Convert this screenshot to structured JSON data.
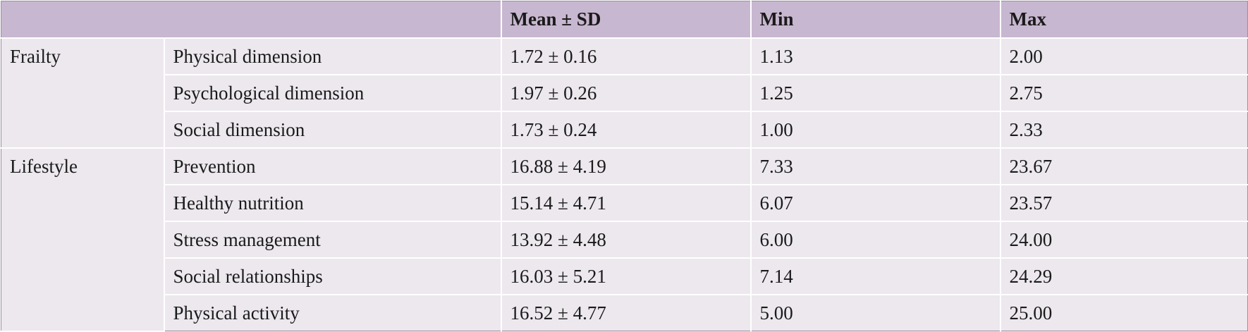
{
  "table": {
    "headers": [
      "",
      "",
      "Mean ± SD",
      "Min",
      "Max"
    ],
    "groups": [
      {
        "label": "Frailty",
        "rows": [
          {
            "name": "Physical dimension",
            "mean_sd": "1.72 ± 0.16",
            "min": "1.13",
            "max": "2.00"
          },
          {
            "name": "Psychological dimension",
            "mean_sd": "1.97 ± 0.26",
            "min": "1.25",
            "max": "2.75"
          },
          {
            "name": "Social dimension",
            "mean_sd": "1.73 ± 0.24",
            "min": "1.00",
            "max": "2.33"
          }
        ]
      },
      {
        "label": "Lifestyle",
        "rows": [
          {
            "name": "Prevention",
            "mean_sd": "16.88 ± 4.19",
            "min": "7.33",
            "max": "23.67"
          },
          {
            "name": "Healthy nutrition",
            "mean_sd": "15.14 ± 4.71",
            "min": "6.07",
            "max": "23.57"
          },
          {
            "name": "Stress management",
            "mean_sd": "13.92 ± 4.48",
            "min": "6.00",
            "max": "24.00"
          },
          {
            "name": "Social relationships",
            "mean_sd": "16.03 ± 5.21",
            "min": "7.14",
            "max": "24.29"
          },
          {
            "name": "Physical activity",
            "mean_sd": "16.52 ± 4.77",
            "min": "5.00",
            "max": "25.00"
          }
        ]
      }
    ]
  }
}
